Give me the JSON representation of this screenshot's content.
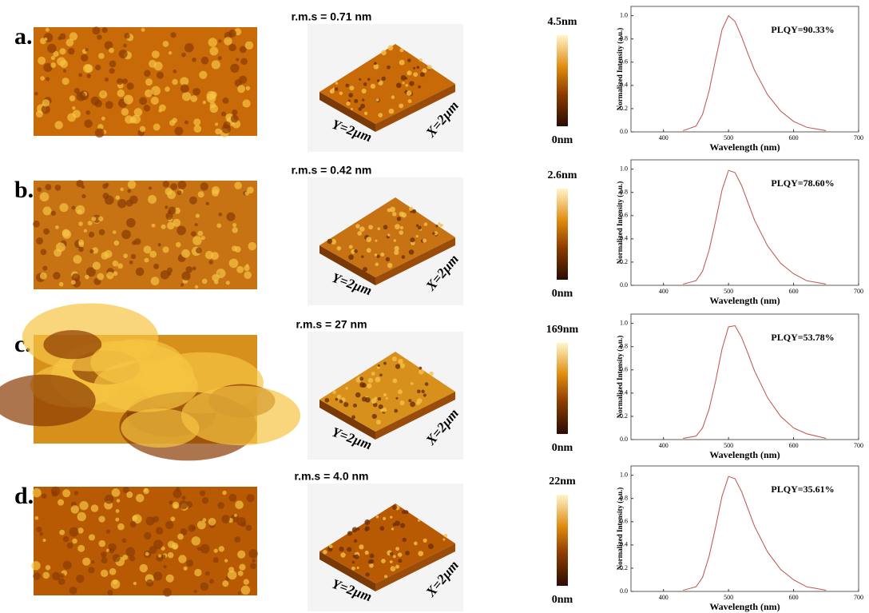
{
  "panels": [
    {
      "label": "a.",
      "rms": "r.m.s = 0.71 nm",
      "y_axis_label": "Y=2µm",
      "x_axis_label": "X=2µm",
      "scale_max": "4.5nm",
      "scale_min": "0nm"
    },
    {
      "label": "b.",
      "rms": "r.m.s = 0.42 nm",
      "y_axis_label": "Y=2µm",
      "x_axis_label": "X=2µm",
      "scale_max": "2.6nm",
      "scale_min": "0nm"
    },
    {
      "label": "c.",
      "rms": "r.m.s = 27 nm",
      "y_axis_label": "Y=2µm",
      "x_axis_label": "X=2µm",
      "scale_max": "169nm",
      "scale_min": "0nm"
    },
    {
      "label": "d.",
      "rms": "r.m.s = 4.0 nm",
      "y_axis_label": "Y=2µm",
      "x_axis_label": "X=2µm",
      "scale_max": "22nm",
      "scale_min": "0nm"
    }
  ],
  "chart_data": [
    {
      "type": "line",
      "annotation": "PLQY=90.33%",
      "xlabel": "Wavelength (nm)",
      "ylabel": "Normalized Intensity (a.u.)",
      "x": [
        430,
        450,
        460,
        470,
        480,
        490,
        500,
        510,
        520,
        530,
        540,
        560,
        580,
        600,
        620,
        650
      ],
      "values": [
        0.01,
        0.05,
        0.15,
        0.35,
        0.62,
        0.88,
        1.0,
        0.95,
        0.82,
        0.67,
        0.53,
        0.32,
        0.18,
        0.09,
        0.04,
        0.01
      ],
      "color": "#c0504d",
      "xlim": [
        350,
        700
      ],
      "xticks": [
        400,
        500,
        600,
        700
      ],
      "ylim": [
        0,
        1.08
      ],
      "yticks": [
        {
          "value": 0,
          "label": "0.0"
        },
        0.2,
        0.4,
        0.6,
        0.8,
        {
          "value": 1,
          "label": "1.0"
        }
      ]
    },
    {
      "type": "line",
      "annotation": "PLQY=78.60%",
      "xlabel": "Wavelength (nm)",
      "ylabel": "Normalized Intensity (a.u.)",
      "x": [
        430,
        450,
        460,
        470,
        480,
        490,
        500,
        510,
        520,
        530,
        540,
        560,
        580,
        600,
        620,
        650
      ],
      "values": [
        0.01,
        0.04,
        0.12,
        0.3,
        0.55,
        0.82,
        0.99,
        0.97,
        0.86,
        0.71,
        0.56,
        0.34,
        0.19,
        0.1,
        0.04,
        0.01
      ],
      "color": "#c0504d",
      "xlim": [
        350,
        700
      ],
      "xticks": [
        400,
        500,
        600,
        700
      ],
      "ylim": [
        0,
        1.08
      ],
      "yticks": [
        {
          "value": 0,
          "label": "0.0"
        },
        0.2,
        0.4,
        0.6,
        0.8,
        {
          "value": 1,
          "label": "1.0"
        }
      ]
    },
    {
      "type": "line",
      "annotation": "PLQY=53.78%",
      "xlabel": "Wavelength (nm)",
      "ylabel": "Normalized Intensity (a.u.)",
      "x": [
        430,
        450,
        460,
        470,
        480,
        490,
        500,
        510,
        520,
        530,
        540,
        560,
        580,
        600,
        620,
        650
      ],
      "values": [
        0.01,
        0.03,
        0.1,
        0.26,
        0.5,
        0.78,
        0.97,
        0.98,
        0.88,
        0.74,
        0.59,
        0.36,
        0.2,
        0.1,
        0.05,
        0.01
      ],
      "color": "#c0504d",
      "xlim": [
        350,
        700
      ],
      "xticks": [
        400,
        500,
        600,
        700
      ],
      "ylim": [
        0,
        1.08
      ],
      "yticks": [
        {
          "value": 0,
          "label": "0.0"
        },
        0.2,
        0.4,
        0.6,
        0.8,
        {
          "value": 1,
          "label": "1.0"
        }
      ]
    },
    {
      "type": "line",
      "annotation": "PLQY=35.61%",
      "xlabel": "Wavelength (nm)",
      "ylabel": "Normalized Intensity (a.u.)",
      "x": [
        430,
        450,
        460,
        470,
        480,
        490,
        500,
        510,
        520,
        530,
        540,
        560,
        580,
        600,
        620,
        650
      ],
      "values": [
        0.01,
        0.04,
        0.12,
        0.3,
        0.55,
        0.82,
        0.99,
        0.97,
        0.86,
        0.71,
        0.56,
        0.34,
        0.19,
        0.1,
        0.04,
        0.01
      ],
      "color": "#c0504d",
      "xlim": [
        350,
        700
      ],
      "xticks": [
        400,
        500,
        600,
        700
      ],
      "ylim": [
        0,
        1.08
      ],
      "yticks": [
        {
          "value": 0,
          "label": "0.0"
        },
        0.2,
        0.4,
        0.6,
        0.8,
        {
          "value": 1,
          "label": "1.0"
        }
      ]
    }
  ]
}
